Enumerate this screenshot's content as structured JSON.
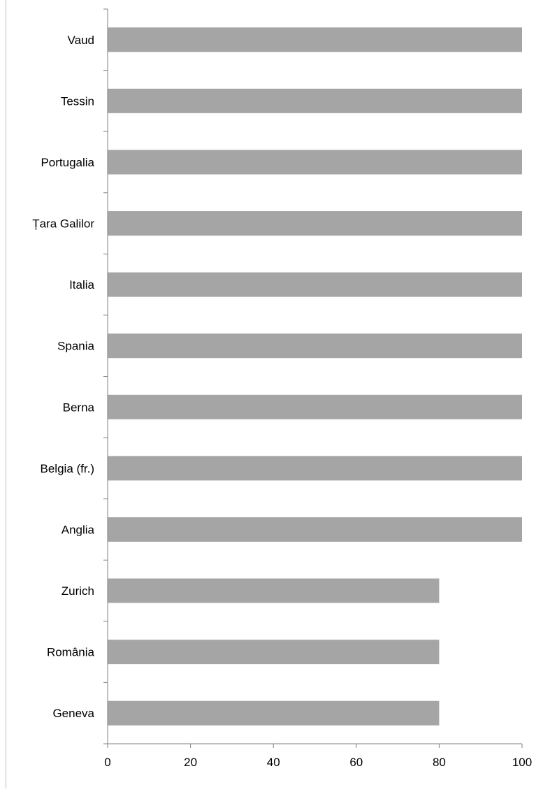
{
  "chart_data": {
    "type": "bar",
    "orientation": "horizontal",
    "categories": [
      "Vaud",
      "Tessin",
      "Portugalia",
      "Țara Galilor",
      "Italia",
      "Spania",
      "Berna",
      "Belgia (fr.)",
      "Anglia",
      "Zurich",
      "România",
      "Geneva"
    ],
    "values": [
      100,
      100,
      100,
      100,
      100,
      100,
      100,
      100,
      100,
      80,
      80,
      80
    ],
    "title": "",
    "xlabel": "",
    "ylabel": "",
    "xlim": [
      0,
      100
    ],
    "xticks": [
      0,
      20,
      40,
      60,
      80,
      100
    ],
    "xtick_labels": [
      "0",
      "20",
      "40",
      "60",
      "80",
      "100"
    ],
    "grid": false,
    "legend": "none",
    "bar_color": "#a5a5a5",
    "axis_color": "#808080"
  }
}
